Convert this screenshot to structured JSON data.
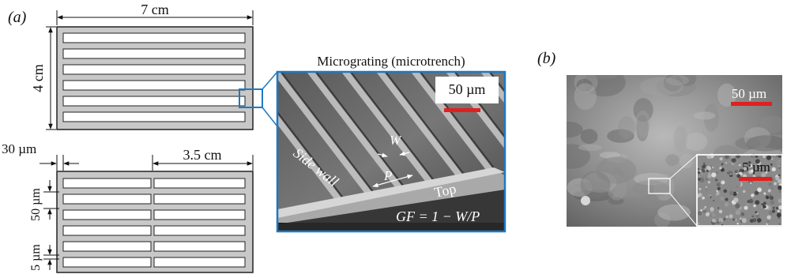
{
  "panels": {
    "a": {
      "label": "(a)"
    },
    "b": {
      "label": "(b)"
    }
  },
  "top_diagram": {
    "width_label": "7 cm",
    "height_label": "4 cm",
    "slot_count": 6
  },
  "bottom_diagram": {
    "dim_30": "30 µm",
    "dim_half_width": "3.5 cm",
    "dim_50": "50 µm",
    "dim_5": "5 µm",
    "slot_rows": 6,
    "slot_columns": 2
  },
  "micrograting": {
    "title": "Micrograting (microtrench)",
    "scalebar_label": "50 µm",
    "side_wall": "Side wall",
    "w_label": "W",
    "p_label": "P",
    "top_label": "Top",
    "gf_formula": "GF = 1 − W/P"
  },
  "sem_b": {
    "scalebar_label": "50 µm",
    "inset_scalebar_label": "5 µm"
  },
  "colors": {
    "frame_fill": "#c8c8c8",
    "inset_border": "#1f78c4",
    "scalebar": "#e02020"
  }
}
